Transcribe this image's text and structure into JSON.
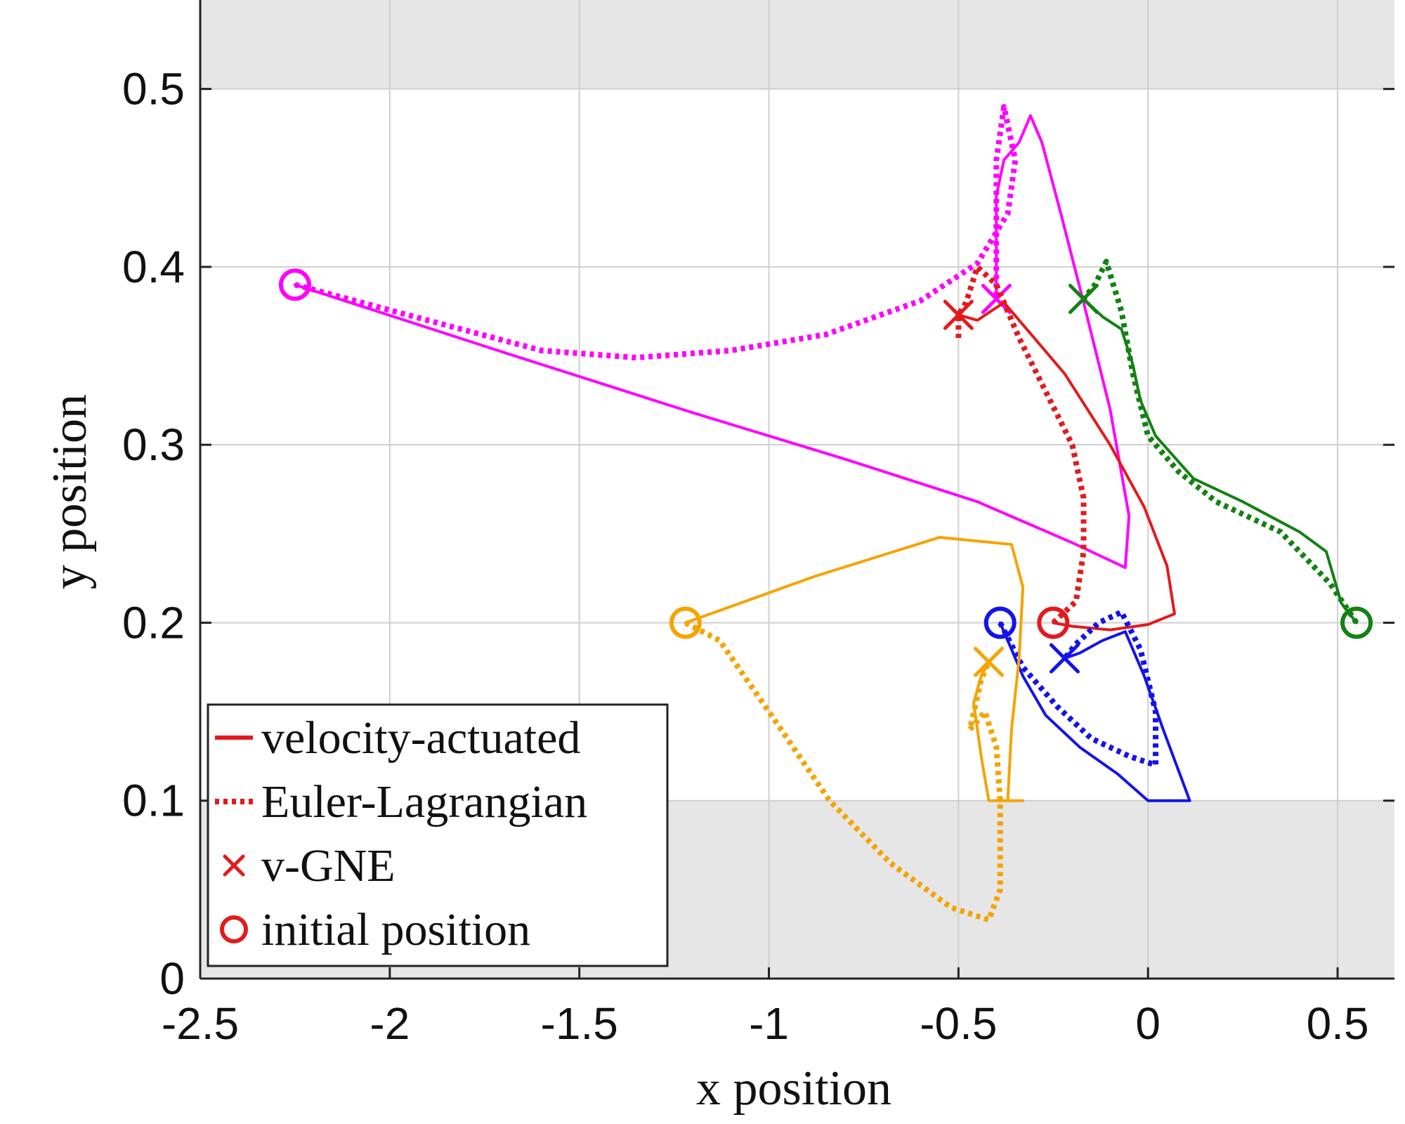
{
  "chart_data": {
    "type": "line",
    "title": "",
    "xlabel": "x position",
    "ylabel": "y position",
    "xlim": [
      -2.5,
      0.65
    ],
    "ylim": [
      0,
      0.55
    ],
    "grid": true,
    "xticks": [
      -2.5,
      -2,
      -1.5,
      -1,
      -0.5,
      0,
      0.5
    ],
    "xtick_labels": [
      "-2.5",
      "-2",
      "-1.5",
      "-1",
      "-0.5",
      "0",
      "0.5"
    ],
    "yticks": [
      0,
      0.1,
      0.2,
      0.3,
      0.4,
      0.5
    ],
    "ytick_labels": [
      "0",
      "0.1",
      "0.2",
      "0.3",
      "0.4",
      "0.5"
    ],
    "shaded_regions": [
      {
        "name": "upper-infeasible-region",
        "y": [
          0.5,
          0.55
        ],
        "color": "#e6e6e6"
      },
      {
        "name": "lower-infeasible-region",
        "y": [
          0,
          0.1
        ],
        "color": "#e6e6e6"
      }
    ],
    "legend": {
      "position": "bottom-left",
      "entries": [
        {
          "label": "velocity-actuated",
          "marker": "solid-line",
          "color": "#e31a1c"
        },
        {
          "label": "Euler-Lagrangian",
          "marker": "dotted-line",
          "color": "#e31a1c"
        },
        {
          "label": "v-GNE",
          "marker": "x",
          "color": "#e31a1c"
        },
        {
          "label": "initial position",
          "marker": "o",
          "color": "#e31a1c"
        }
      ]
    },
    "agents": [
      {
        "name": "magenta",
        "color": "#ff00ff",
        "initial": [
          -2.25,
          0.39
        ],
        "gne": [
          -0.4,
          0.382
        ],
        "velocity_actuated": [
          [
            -2.25,
            0.39
          ],
          [
            -1.7,
            0.352
          ],
          [
            -1.2,
            0.318
          ],
          [
            -0.8,
            0.292
          ],
          [
            -0.45,
            0.268
          ],
          [
            -0.2,
            0.245
          ],
          [
            -0.06,
            0.231
          ],
          [
            -0.05,
            0.26
          ],
          [
            -0.1,
            0.32
          ],
          [
            -0.17,
            0.38
          ],
          [
            -0.23,
            0.43
          ],
          [
            -0.28,
            0.47
          ],
          [
            -0.31,
            0.485
          ],
          [
            -0.34,
            0.47
          ],
          [
            -0.38,
            0.46
          ],
          [
            -0.4,
            0.44
          ],
          [
            -0.4,
            0.41
          ],
          [
            -0.4,
            0.382
          ]
        ],
        "euler_lagrangian": [
          [
            -2.25,
            0.39
          ],
          [
            -1.9,
            0.37
          ],
          [
            -1.6,
            0.353
          ],
          [
            -1.35,
            0.349
          ],
          [
            -1.1,
            0.353
          ],
          [
            -0.85,
            0.362
          ],
          [
            -0.6,
            0.381
          ],
          [
            -0.45,
            0.402
          ],
          [
            -0.37,
            0.43
          ],
          [
            -0.35,
            0.46
          ],
          [
            -0.38,
            0.49
          ],
          [
            -0.4,
            0.46
          ],
          [
            -0.4,
            0.42
          ],
          [
            -0.4,
            0.382
          ]
        ]
      },
      {
        "name": "red",
        "color": "#e31a1c",
        "initial": [
          -0.25,
          0.2
        ],
        "gne": [
          -0.5,
          0.373
        ],
        "velocity_actuated": [
          [
            -0.25,
            0.2
          ],
          [
            -0.2,
            0.198
          ],
          [
            -0.1,
            0.196
          ],
          [
            0.0,
            0.199
          ],
          [
            0.07,
            0.205
          ],
          [
            0.05,
            0.232
          ],
          [
            -0.01,
            0.265
          ],
          [
            -0.1,
            0.3
          ],
          [
            -0.22,
            0.34
          ],
          [
            -0.3,
            0.36
          ],
          [
            -0.38,
            0.38
          ],
          [
            -0.45,
            0.37
          ],
          [
            -0.5,
            0.373
          ]
        ],
        "euler_lagrangian": [
          [
            -0.25,
            0.2
          ],
          [
            -0.19,
            0.212
          ],
          [
            -0.17,
            0.24
          ],
          [
            -0.17,
            0.27
          ],
          [
            -0.2,
            0.3
          ],
          [
            -0.27,
            0.33
          ],
          [
            -0.34,
            0.36
          ],
          [
            -0.4,
            0.39
          ],
          [
            -0.45,
            0.4
          ],
          [
            -0.48,
            0.38
          ],
          [
            -0.5,
            0.373
          ],
          [
            -0.5,
            0.36
          ]
        ]
      },
      {
        "name": "green",
        "color": "#138113",
        "initial": [
          0.55,
          0.2
        ],
        "gne": [
          -0.17,
          0.382
        ],
        "velocity_actuated": [
          [
            0.55,
            0.2
          ],
          [
            0.51,
            0.211
          ],
          [
            0.47,
            0.24
          ],
          [
            0.4,
            0.251
          ],
          [
            0.25,
            0.268
          ],
          [
            0.12,
            0.281
          ],
          [
            0.02,
            0.305
          ],
          [
            -0.02,
            0.325
          ],
          [
            -0.04,
            0.345
          ],
          [
            -0.07,
            0.365
          ],
          [
            -0.12,
            0.372
          ],
          [
            -0.17,
            0.382
          ]
        ],
        "euler_lagrangian": [
          [
            0.55,
            0.2
          ],
          [
            0.48,
            0.222
          ],
          [
            0.35,
            0.251
          ],
          [
            0.18,
            0.268
          ],
          [
            0.08,
            0.285
          ],
          [
            0.0,
            0.305
          ],
          [
            -0.04,
            0.34
          ],
          [
            -0.07,
            0.375
          ],
          [
            -0.11,
            0.403
          ],
          [
            -0.14,
            0.39
          ],
          [
            -0.17,
            0.382
          ]
        ]
      },
      {
        "name": "blue",
        "color": "#1313ec",
        "initial": [
          -0.39,
          0.2
        ],
        "gne": [
          -0.22,
          0.18
        ],
        "velocity_actuated": [
          [
            -0.39,
            0.2
          ],
          [
            -0.33,
            0.17
          ],
          [
            -0.27,
            0.148
          ],
          [
            -0.18,
            0.13
          ],
          [
            -0.08,
            0.115
          ],
          [
            0.0,
            0.1
          ],
          [
            0.11,
            0.1
          ],
          [
            0.04,
            0.14
          ],
          [
            -0.01,
            0.17
          ],
          [
            -0.06,
            0.195
          ],
          [
            -0.12,
            0.19
          ],
          [
            -0.18,
            0.183
          ],
          [
            -0.22,
            0.18
          ]
        ],
        "euler_lagrangian": [
          [
            -0.39,
            0.2
          ],
          [
            -0.33,
            0.175
          ],
          [
            -0.24,
            0.153
          ],
          [
            -0.15,
            0.135
          ],
          [
            -0.05,
            0.125
          ],
          [
            0.02,
            0.12
          ],
          [
            0.02,
            0.15
          ],
          [
            -0.02,
            0.185
          ],
          [
            -0.07,
            0.206
          ],
          [
            -0.13,
            0.2
          ],
          [
            -0.19,
            0.188
          ],
          [
            -0.22,
            0.18
          ]
        ]
      },
      {
        "name": "orange",
        "color": "#f5a300",
        "initial": [
          -1.22,
          0.2
        ],
        "gne": [
          -0.42,
          0.178
        ],
        "velocity_actuated": [
          [
            -1.22,
            0.2
          ],
          [
            -0.88,
            0.226
          ],
          [
            -0.55,
            0.248
          ],
          [
            -0.36,
            0.244
          ],
          [
            -0.33,
            0.22
          ],
          [
            -0.34,
            0.18
          ],
          [
            -0.36,
            0.14
          ],
          [
            -0.37,
            0.1
          ],
          [
            -0.33,
            0.1
          ],
          [
            -0.38,
            0.1
          ],
          [
            -0.42,
            0.1
          ],
          [
            -0.44,
            0.125
          ],
          [
            -0.46,
            0.155
          ],
          [
            -0.44,
            0.17
          ],
          [
            -0.42,
            0.178
          ]
        ],
        "euler_lagrangian": [
          [
            -1.22,
            0.2
          ],
          [
            -1.13,
            0.19
          ],
          [
            -1.0,
            0.15
          ],
          [
            -0.84,
            0.1
          ],
          [
            -0.68,
            0.065
          ],
          [
            -0.52,
            0.04
          ],
          [
            -0.42,
            0.033
          ],
          [
            -0.39,
            0.05
          ],
          [
            -0.39,
            0.1
          ],
          [
            -0.4,
            0.13
          ],
          [
            -0.43,
            0.15
          ],
          [
            -0.47,
            0.14
          ],
          [
            -0.44,
            0.168
          ],
          [
            -0.42,
            0.178
          ]
        ]
      }
    ]
  }
}
